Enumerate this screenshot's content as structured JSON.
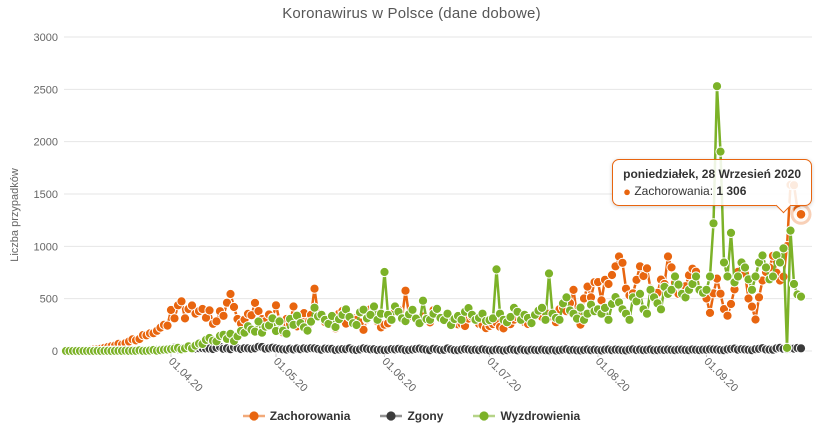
{
  "title": "Koronawirus w Polsce (dane dobowe)",
  "tooltip": {
    "date_label": "poniedziałek, 28 Wrzesień 2020",
    "series_label": "Zachorowania",
    "value": "1 306"
  },
  "colors": {
    "cases": "#e8650f",
    "deaths": "#3b3b3b",
    "recoveries": "#7cb228",
    "grid": "#e6e6e6",
    "axis_text": "#666666",
    "tick_mark": "#cccccc"
  },
  "chart_data": {
    "type": "line",
    "title": "Koronawirus w Polsce (dane dobowe)",
    "xlabel": "",
    "ylabel": "Liczba przypadków",
    "ylim": [
      0,
      3000
    ],
    "y_ticks": [
      0,
      500,
      1000,
      1500,
      2000,
      2500,
      3000
    ],
    "grid": "horizontal",
    "legend_position": "bottom",
    "start_date": "2020-03-02",
    "end_date": "2020-09-28",
    "x_ticks": [
      {
        "label": "01.04.20",
        "day": 30
      },
      {
        "label": "01.05.20",
        "day": 60
      },
      {
        "label": "01.06.20",
        "day": 91
      },
      {
        "label": "01.07.20",
        "day": 121
      },
      {
        "label": "01.08.20",
        "day": 152
      },
      {
        "label": "01.09.20",
        "day": 183
      }
    ],
    "highlight": {
      "series": "Zachorowania",
      "index": 210,
      "value": 1306
    },
    "series": [
      {
        "name": "Zachorowania",
        "color": "#e8650f",
        "values": [
          0,
          1,
          2,
          1,
          5,
          6,
          8,
          11,
          14,
          17,
          22,
          31,
          38,
          46,
          52,
          68,
          61,
          75,
          91,
          111,
          101,
          115,
          152,
          150,
          168,
          170,
          193,
          224,
          249,
          243,
          392,
          312,
          437,
          475,
          311,
          401,
          435,
          357,
          380,
          401,
          318,
          388,
          260,
          284,
          380,
          336,
          461,
          545,
          420,
          306,
          263,
          300,
          354,
          342,
          460,
          381,
          305,
          285,
          349,
          316,
          437,
          292,
          178,
          306,
          260,
          425,
          235,
          309,
          362,
          223,
          345,
          595,
          356,
          322,
          276,
          272,
          252,
          217,
          356,
          383,
          262,
          323,
          313,
          298,
          272,
          203,
          301,
          399,
          389,
          282,
          225,
          251,
          265,
          292,
          380,
          391,
          319,
          576,
          346,
          332,
          301,
          298,
          329,
          314,
          273,
          390,
          388,
          315,
          317,
          324,
          306,
          298,
          255,
          260,
          239,
          310,
          328,
          306,
          259,
          247,
          219,
          239,
          257,
          271,
          231,
          216,
          279,
          257,
          299,
          320,
          332,
          276,
          258,
          299,
          335,
          380,
          325,
          367,
          354,
          328,
          275,
          399,
          415,
          380,
          458,
          584,
          337,
          252,
          502,
          615,
          512,
          657,
          658,
          483,
          680,
          640,
          726,
          809,
          903,
          843,
          595,
          531,
          551,
          680,
          809,
          717,
          789,
          595,
          501,
          555,
          682,
          640,
          903,
          799,
          651,
          546,
          571,
          619,
          724,
          786,
          758,
          583,
          552,
          502,
          364,
          551,
          692,
          547,
          400,
          337,
          449,
          589,
          757,
          847,
          739,
          502,
          424,
          301,
          512,
          674,
          755,
          798,
          910,
          748,
          674,
          711,
          1002,
          1587,
          1584,
          1350,
          1306
        ]
      },
      {
        "name": "Zgony",
        "color": "#3b3b3b",
        "values": [
          0,
          0,
          1,
          0,
          0,
          1,
          2,
          1,
          2,
          3,
          2,
          1,
          3,
          5,
          4,
          5,
          5,
          7,
          5,
          2,
          6,
          9,
          8,
          7,
          10,
          11,
          13,
          15,
          18,
          17,
          25,
          33,
          18,
          28,
          24,
          40,
          20,
          23,
          27,
          28,
          24,
          23,
          19,
          32,
          40,
          21,
          25,
          17,
          34,
          28,
          19,
          27,
          25,
          21,
          26,
          40,
          38,
          22,
          26,
          32,
          25,
          21,
          16,
          14,
          22,
          15,
          24,
          17,
          26,
          22,
          27,
          25,
          19,
          12,
          23,
          20,
          21,
          10,
          14,
          18,
          17,
          26,
          13,
          10,
          15,
          25,
          20,
          16,
          17,
          10,
          12,
          8,
          11,
          18,
          15,
          20,
          17,
          9,
          10,
          14,
          19,
          23,
          17,
          12,
          8,
          21,
          15,
          10,
          11,
          24,
          16,
          9,
          8,
          13,
          18,
          14,
          10,
          12,
          9,
          15,
          11,
          6,
          8,
          12,
          10,
          5,
          9,
          15,
          11,
          7,
          14,
          9,
          6,
          12,
          10,
          8,
          13,
          9,
          7,
          11,
          5,
          8,
          12,
          15,
          9,
          11,
          7,
          6,
          10,
          13,
          9,
          12,
          9,
          6,
          12,
          14,
          9,
          13,
          11,
          8,
          6,
          12,
          15,
          10,
          13,
          9,
          11,
          14,
          8,
          9,
          12,
          10,
          13,
          11,
          9,
          12,
          13,
          10,
          8,
          14,
          11,
          9,
          12,
          12,
          15,
          14,
          13,
          10,
          8,
          15,
          19,
          23,
          12,
          17,
          14,
          11,
          8,
          17,
          21,
          27,
          14,
          13,
          12,
          25,
          30,
          21,
          19,
          26,
          23,
          29,
          26
        ]
      },
      {
        "name": "Wyzdrowienia",
        "color": "#7cb228",
        "values": [
          0,
          0,
          0,
          0,
          0,
          0,
          0,
          0,
          0,
          1,
          0,
          1,
          1,
          0,
          1,
          2,
          1,
          3,
          1,
          2,
          2,
          7,
          1,
          2,
          5,
          10,
          3,
          8,
          12,
          14,
          18,
          23,
          31,
          16,
          26,
          45,
          26,
          52,
          71,
          67,
          106,
          124,
          98,
          92,
          144,
          155,
          116,
          163,
          96,
          140,
          191,
          175,
          237,
          204,
          185,
          282,
          175,
          233,
          245,
          311,
          191,
          283,
          194,
          165,
          306,
          250,
          337,
          267,
          225,
          195,
          281,
          414,
          331,
          346,
          297,
          259,
          334,
          229,
          304,
          345,
          398,
          325,
          266,
          248,
          370,
          395,
          311,
          345,
          425,
          298,
          356,
          755,
          346,
          298,
          425,
          375,
          312,
          286,
          351,
          394,
          310,
          266,
          481,
          305,
          298,
          356,
          402,
          315,
          296,
          356,
          248,
          306,
          334,
          298,
          375,
          410,
          346,
          298,
          316,
          356,
          288,
          295,
          312,
          780,
          356,
          298,
          275,
          325,
          412,
          375,
          298,
          346,
          315,
          267,
          346,
          385,
          412,
          298,
          740,
          356,
          315,
          298,
          455,
          512,
          387,
          356,
          310,
          415,
          298,
          356,
          442,
          380,
          398,
          356,
          412,
          298,
          450,
          515,
          465,
          398,
          356,
          298,
          512,
          475,
          546,
          398,
          356,
          585,
          512,
          456,
          398,
          612,
          546,
          585,
          712,
          634,
          546,
          512,
          585,
          640,
          712,
          584,
          556,
          585,
          712,
          1220,
          2530,
          1905,
          846,
          712,
          1128,
          655,
          712,
          846,
          798,
          685,
          585,
          712,
          846,
          912,
          798,
          685,
          712,
          915,
          846,
          980,
          30,
          1150,
          640,
          540,
          520
        ]
      }
    ]
  }
}
